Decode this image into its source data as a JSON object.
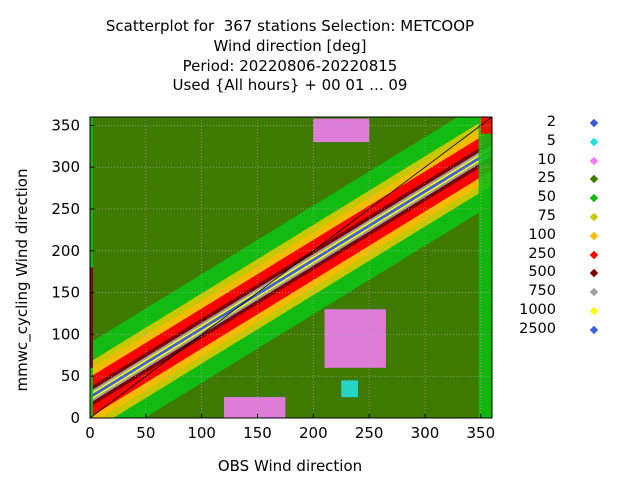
{
  "chart_data": {
    "type": "scatter",
    "title_lines": [
      "Scatterplot for  367 stations Selection: METCOOP",
      "Wind direction [deg]",
      "Period: 20220806-20220815",
      "Used {All hours} + 00 01 ... 09"
    ],
    "xlabel": "OBS Wind direction",
    "ylabel": "mmwc_cycling Wind direction",
    "xlim": [
      0,
      360
    ],
    "ylim": [
      0,
      360
    ],
    "x_ticks": [
      "0",
      "50",
      "100",
      "150",
      "200",
      "250",
      "300",
      "350"
    ],
    "y_ticks": [
      "0",
      "50",
      "100",
      "150",
      "200",
      "250",
      "300",
      "350"
    ],
    "grid": true,
    "legend_position": "right",
    "legend": [
      {
        "label": "2",
        "color": "#3b5bd6"
      },
      {
        "label": "5",
        "color": "#22dddd"
      },
      {
        "label": "10",
        "color": "#f07cf0"
      },
      {
        "label": "25",
        "color": "#3f7a00"
      },
      {
        "label": "50",
        "color": "#11bb11"
      },
      {
        "label": "75",
        "color": "#c8c800"
      },
      {
        "label": "100",
        "color": "#f4bb00"
      },
      {
        "label": "250",
        "color": "#ff0000"
      },
      {
        "label": "500",
        "color": "#7a0000"
      },
      {
        "label": "750",
        "color": "#a0a0a0"
      },
      {
        "label": "1000",
        "color": "#ffff00"
      },
      {
        "label": "2500",
        "color": "#4060e0"
      }
    ],
    "density_bands": [
      {
        "class": "25",
        "max_offset": 360
      },
      {
        "class": "50",
        "max_offset": 65
      },
      {
        "class": "75",
        "max_offset": 42
      },
      {
        "class": "100",
        "max_offset": 33
      },
      {
        "class": "250",
        "max_offset": 24
      },
      {
        "class": "500",
        "max_offset": 12
      },
      {
        "class": "750",
        "max_offset": 7
      },
      {
        "class": "1000",
        "max_offset": 4
      },
      {
        "class": "2500",
        "max_offset": 2
      }
    ],
    "density_clusters": [
      {
        "class": "10",
        "x": [
          200,
          250
        ],
        "y": [
          330,
          358
        ]
      },
      {
        "class": "10",
        "x": [
          210,
          265
        ],
        "y": [
          60,
          130
        ]
      },
      {
        "class": "5",
        "x": [
          225,
          240
        ],
        "y": [
          25,
          45
        ]
      },
      {
        "class": "10",
        "x": [
          120,
          175
        ],
        "y": [
          0,
          25
        ]
      },
      {
        "class": "50",
        "x": [
          0,
          2
        ],
        "y": [
          0,
          360
        ]
      },
      {
        "class": "500",
        "x": [
          0,
          2
        ],
        "y": [
          60,
          180
        ]
      },
      {
        "class": "50",
        "x": [
          348,
          360
        ],
        "y": [
          0,
          360
        ]
      },
      {
        "class": "250",
        "x": [
          350,
          360
        ],
        "y": [
          340,
          360
        ]
      }
    ],
    "reference_line": "y = x"
  }
}
